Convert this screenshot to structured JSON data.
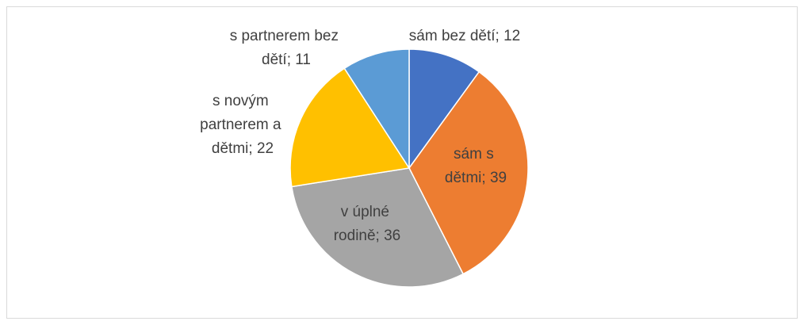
{
  "chart_data": {
    "type": "pie",
    "categories": [
      "sám bez dětí",
      "sám s dětmi",
      "v úplné rodině",
      "s novým partnerem a dětmi",
      "s partnerem bez dětí"
    ],
    "values": [
      12,
      39,
      36,
      22,
      11
    ],
    "value_labels": [
      "sám bez dětí; 12",
      "sám s dětmi; 39",
      "v úplné rodině; 36",
      "s novým partnerem a dětmi; 22",
      "s partnerem bez dětí; 11"
    ],
    "colors": [
      "#4472c4",
      "#ed7d31",
      "#a5a5a5",
      "#ffc000",
      "#5b9bd5"
    ]
  }
}
